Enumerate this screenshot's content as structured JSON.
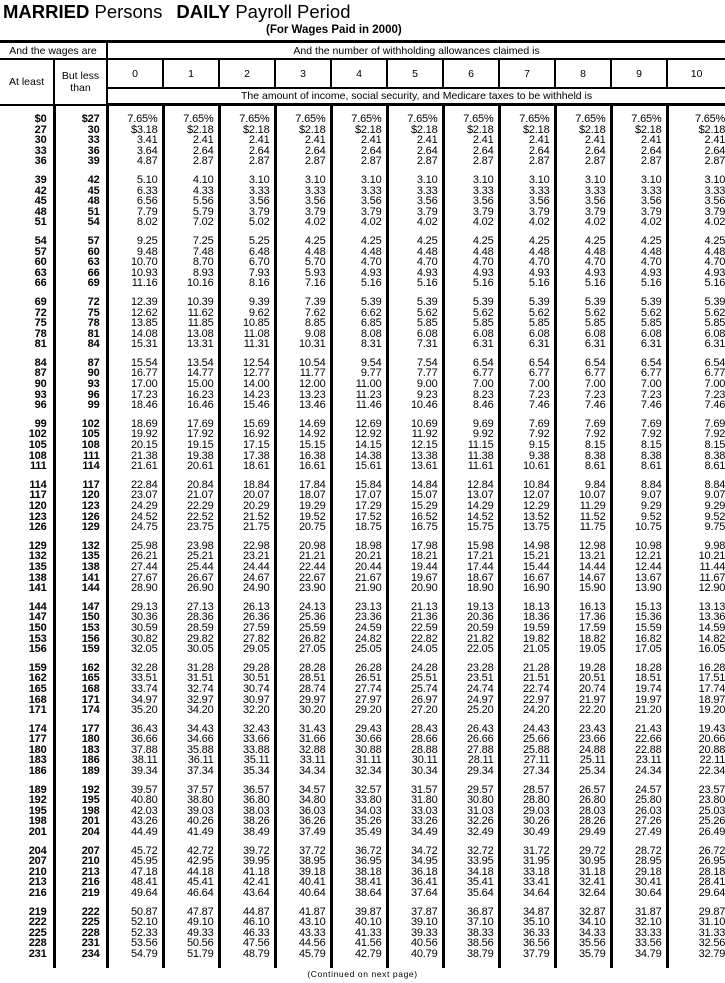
{
  "title": {
    "part1": "MARRIED",
    "part2": "Persons",
    "part3": "DAILY",
    "part4": "Payroll Period"
  },
  "subtitle": "(For Wages Paid in 2000)",
  "header": {
    "wages_label": "And the wages are",
    "allowances_label": "And the number of withholding allowances claimed is",
    "at_least": "At least",
    "but_less_than": "But less than",
    "allowance_columns": [
      "0",
      "1",
      "2",
      "3",
      "4",
      "5",
      "6",
      "7",
      "8",
      "9",
      "10"
    ],
    "amount_label": "The amount of income, social security, and Medicare taxes to be withheld is"
  },
  "groups": [
    [
      [
        "$0",
        "$27",
        "7.65%",
        "7.65%",
        "7.65%",
        "7.65%",
        "7.65%",
        "7.65%",
        "7.65%",
        "7.65%",
        "7.65%",
        "7.65%",
        "7.65%"
      ],
      [
        "27",
        "30",
        "$3.18",
        "$2.18",
        "$2.18",
        "$2.18",
        "$2.18",
        "$2.18",
        "$2.18",
        "$2.18",
        "$2.18",
        "$2.18",
        "$2.18"
      ],
      [
        "30",
        "33",
        "3.41",
        "2.41",
        "2.41",
        "2.41",
        "2.41",
        "2.41",
        "2.41",
        "2.41",
        "2.41",
        "2.41",
        "2.41"
      ],
      [
        "33",
        "36",
        "3.64",
        "2.64",
        "2.64",
        "2.64",
        "2.64",
        "2.64",
        "2.64",
        "2.64",
        "2.64",
        "2.64",
        "2.64"
      ],
      [
        "36",
        "39",
        "4.87",
        "2.87",
        "2.87",
        "2.87",
        "2.87",
        "2.87",
        "2.87",
        "2.87",
        "2.87",
        "2.87",
        "2.87"
      ]
    ],
    [
      [
        "39",
        "42",
        "5.10",
        "4.10",
        "3.10",
        "3.10",
        "3.10",
        "3.10",
        "3.10",
        "3.10",
        "3.10",
        "3.10",
        "3.10"
      ],
      [
        "42",
        "45",
        "6.33",
        "4.33",
        "3.33",
        "3.33",
        "3.33",
        "3.33",
        "3.33",
        "3.33",
        "3.33",
        "3.33",
        "3.33"
      ],
      [
        "45",
        "48",
        "6.56",
        "5.56",
        "3.56",
        "3.56",
        "3.56",
        "3.56",
        "3.56",
        "3.56",
        "3.56",
        "3.56",
        "3.56"
      ],
      [
        "48",
        "51",
        "7.79",
        "5.79",
        "3.79",
        "3.79",
        "3.79",
        "3.79",
        "3.79",
        "3.79",
        "3.79",
        "3.79",
        "3.79"
      ],
      [
        "51",
        "54",
        "8.02",
        "7.02",
        "5.02",
        "4.02",
        "4.02",
        "4.02",
        "4.02",
        "4.02",
        "4.02",
        "4.02",
        "4.02"
      ]
    ],
    [
      [
        "54",
        "57",
        "9.25",
        "7.25",
        "5.25",
        "4.25",
        "4.25",
        "4.25",
        "4.25",
        "4.25",
        "4.25",
        "4.25",
        "4.25"
      ],
      [
        "57",
        "60",
        "9.48",
        "7.48",
        "6.48",
        "4.48",
        "4.48",
        "4.48",
        "4.48",
        "4.48",
        "4.48",
        "4.48",
        "4.48"
      ],
      [
        "60",
        "63",
        "10.70",
        "8.70",
        "6.70",
        "5.70",
        "4.70",
        "4.70",
        "4.70",
        "4.70",
        "4.70",
        "4.70",
        "4.70"
      ],
      [
        "63",
        "66",
        "10.93",
        "8.93",
        "7.93",
        "5.93",
        "4.93",
        "4.93",
        "4.93",
        "4.93",
        "4.93",
        "4.93",
        "4.93"
      ],
      [
        "66",
        "69",
        "11.16",
        "10.16",
        "8.16",
        "7.16",
        "5.16",
        "5.16",
        "5.16",
        "5.16",
        "5.16",
        "5.16",
        "5.16"
      ]
    ],
    [
      [
        "69",
        "72",
        "12.39",
        "10.39",
        "9.39",
        "7.39",
        "5.39",
        "5.39",
        "5.39",
        "5.39",
        "5.39",
        "5.39",
        "5.39"
      ],
      [
        "72",
        "75",
        "12.62",
        "11.62",
        "9.62",
        "7.62",
        "6.62",
        "5.62",
        "5.62",
        "5.62",
        "5.62",
        "5.62",
        "5.62"
      ],
      [
        "75",
        "78",
        "13.85",
        "11.85",
        "10.85",
        "8.85",
        "6.85",
        "5.85",
        "5.85",
        "5.85",
        "5.85",
        "5.85",
        "5.85"
      ],
      [
        "78",
        "81",
        "14.08",
        "13.08",
        "11.08",
        "9.08",
        "8.08",
        "6.08",
        "6.08",
        "6.08",
        "6.08",
        "6.08",
        "6.08"
      ],
      [
        "81",
        "84",
        "15.31",
        "13.31",
        "11.31",
        "10.31",
        "8.31",
        "7.31",
        "6.31",
        "6.31",
        "6.31",
        "6.31",
        "6.31"
      ]
    ],
    [
      [
        "84",
        "87",
        "15.54",
        "13.54",
        "12.54",
        "10.54",
        "9.54",
        "7.54",
        "6.54",
        "6.54",
        "6.54",
        "6.54",
        "6.54"
      ],
      [
        "87",
        "90",
        "16.77",
        "14.77",
        "12.77",
        "11.77",
        "9.77",
        "7.77",
        "6.77",
        "6.77",
        "6.77",
        "6.77",
        "6.77"
      ],
      [
        "90",
        "93",
        "17.00",
        "15.00",
        "14.00",
        "12.00",
        "11.00",
        "9.00",
        "7.00",
        "7.00",
        "7.00",
        "7.00",
        "7.00"
      ],
      [
        "93",
        "96",
        "17.23",
        "16.23",
        "14.23",
        "13.23",
        "11.23",
        "9.23",
        "8.23",
        "7.23",
        "7.23",
        "7.23",
        "7.23"
      ],
      [
        "96",
        "99",
        "18.46",
        "16.46",
        "15.46",
        "13.46",
        "11.46",
        "10.46",
        "8.46",
        "7.46",
        "7.46",
        "7.46",
        "7.46"
      ]
    ],
    [
      [
        "99",
        "102",
        "18.69",
        "17.69",
        "15.69",
        "14.69",
        "12.69",
        "10.69",
        "9.69",
        "7.69",
        "7.69",
        "7.69",
        "7.69"
      ],
      [
        "102",
        "105",
        "19.92",
        "17.92",
        "16.92",
        "14.92",
        "12.92",
        "11.92",
        "9.92",
        "7.92",
        "7.92",
        "7.92",
        "7.92"
      ],
      [
        "105",
        "108",
        "20.15",
        "19.15",
        "17.15",
        "15.15",
        "14.15",
        "12.15",
        "11.15",
        "9.15",
        "8.15",
        "8.15",
        "8.15"
      ],
      [
        "108",
        "111",
        "21.38",
        "19.38",
        "17.38",
        "16.38",
        "14.38",
        "13.38",
        "11.38",
        "9.38",
        "8.38",
        "8.38",
        "8.38"
      ],
      [
        "111",
        "114",
        "21.61",
        "20.61",
        "18.61",
        "16.61",
        "15.61",
        "13.61",
        "11.61",
        "10.61",
        "8.61",
        "8.61",
        "8.61"
      ]
    ],
    [
      [
        "114",
        "117",
        "22.84",
        "20.84",
        "18.84",
        "17.84",
        "15.84",
        "14.84",
        "12.84",
        "10.84",
        "9.84",
        "8.84",
        "8.84"
      ],
      [
        "117",
        "120",
        "23.07",
        "21.07",
        "20.07",
        "18.07",
        "17.07",
        "15.07",
        "13.07",
        "12.07",
        "10.07",
        "9.07",
        "9.07"
      ],
      [
        "120",
        "123",
        "24.29",
        "22.29",
        "20.29",
        "19.29",
        "17.29",
        "15.29",
        "14.29",
        "12.29",
        "11.29",
        "9.29",
        "9.29"
      ],
      [
        "123",
        "126",
        "24.52",
        "22.52",
        "21.52",
        "19.52",
        "17.52",
        "16.52",
        "14.52",
        "13.52",
        "11.52",
        "9.52",
        "9.52"
      ],
      [
        "126",
        "129",
        "24.75",
        "23.75",
        "21.75",
        "20.75",
        "18.75",
        "16.75",
        "15.75",
        "13.75",
        "11.75",
        "10.75",
        "9.75"
      ]
    ],
    [
      [
        "129",
        "132",
        "25.98",
        "23.98",
        "22.98",
        "20.98",
        "18.98",
        "17.98",
        "15.98",
        "14.98",
        "12.98",
        "10.98",
        "9.98"
      ],
      [
        "132",
        "135",
        "26.21",
        "25.21",
        "23.21",
        "21.21",
        "20.21",
        "18.21",
        "17.21",
        "15.21",
        "13.21",
        "12.21",
        "10.21"
      ],
      [
        "135",
        "138",
        "27.44",
        "25.44",
        "24.44",
        "22.44",
        "20.44",
        "19.44",
        "17.44",
        "15.44",
        "14.44",
        "12.44",
        "11.44"
      ],
      [
        "138",
        "141",
        "27.67",
        "26.67",
        "24.67",
        "22.67",
        "21.67",
        "19.67",
        "18.67",
        "16.67",
        "14.67",
        "13.67",
        "11.67"
      ],
      [
        "141",
        "144",
        "28.90",
        "26.90",
        "24.90",
        "23.90",
        "21.90",
        "20.90",
        "18.90",
        "16.90",
        "15.90",
        "13.90",
        "12.90"
      ]
    ],
    [
      [
        "144",
        "147",
        "29.13",
        "27.13",
        "26.13",
        "24.13",
        "23.13",
        "21.13",
        "19.13",
        "18.13",
        "16.13",
        "15.13",
        "13.13"
      ],
      [
        "147",
        "150",
        "30.36",
        "28.36",
        "26.36",
        "25.36",
        "23.36",
        "21.36",
        "20.36",
        "18.36",
        "17.36",
        "15.36",
        "13.36"
      ],
      [
        "150",
        "153",
        "30.59",
        "28.59",
        "27.59",
        "25.59",
        "24.59",
        "22.59",
        "20.59",
        "19.59",
        "17.59",
        "15.59",
        "14.59"
      ],
      [
        "153",
        "156",
        "30.82",
        "29.82",
        "27.82",
        "26.82",
        "24.82",
        "22.82",
        "21.82",
        "19.82",
        "18.82",
        "16.82",
        "14.82"
      ],
      [
        "156",
        "159",
        "32.05",
        "30.05",
        "29.05",
        "27.05",
        "25.05",
        "24.05",
        "22.05",
        "21.05",
        "19.05",
        "17.05",
        "16.05"
      ]
    ],
    [
      [
        "159",
        "162",
        "32.28",
        "31.28",
        "29.28",
        "28.28",
        "26.28",
        "24.28",
        "23.28",
        "21.28",
        "19.28",
        "18.28",
        "16.28"
      ],
      [
        "162",
        "165",
        "33.51",
        "31.51",
        "30.51",
        "28.51",
        "26.51",
        "25.51",
        "23.51",
        "21.51",
        "20.51",
        "18.51",
        "17.51"
      ],
      [
        "165",
        "168",
        "33.74",
        "32.74",
        "30.74",
        "28.74",
        "27.74",
        "25.74",
        "24.74",
        "22.74",
        "20.74",
        "19.74",
        "17.74"
      ],
      [
        "168",
        "171",
        "34.97",
        "32.97",
        "30.97",
        "29.97",
        "27.97",
        "26.97",
        "24.97",
        "22.97",
        "21.97",
        "19.97",
        "18.97"
      ],
      [
        "171",
        "174",
        "35.20",
        "34.20",
        "32.20",
        "30.20",
        "29.20",
        "27.20",
        "25.20",
        "24.20",
        "22.20",
        "21.20",
        "19.20"
      ]
    ],
    [
      [
        "174",
        "177",
        "36.43",
        "34.43",
        "32.43",
        "31.43",
        "29.43",
        "28.43",
        "26.43",
        "24.43",
        "23.43",
        "21.43",
        "19.43"
      ],
      [
        "177",
        "180",
        "36.66",
        "34.66",
        "33.66",
        "31.66",
        "30.66",
        "28.66",
        "26.66",
        "25.66",
        "23.66",
        "22.66",
        "20.66"
      ],
      [
        "180",
        "183",
        "37.88",
        "35.88",
        "33.88",
        "32.88",
        "30.88",
        "28.88",
        "27.88",
        "25.88",
        "24.88",
        "22.88",
        "20.88"
      ],
      [
        "183",
        "186",
        "38.11",
        "36.11",
        "35.11",
        "33.11",
        "31.11",
        "30.11",
        "28.11",
        "27.11",
        "25.11",
        "23.11",
        "22.11"
      ],
      [
        "186",
        "189",
        "39.34",
        "37.34",
        "35.34",
        "34.34",
        "32.34",
        "30.34",
        "29.34",
        "27.34",
        "25.34",
        "24.34",
        "22.34"
      ]
    ],
    [
      [
        "189",
        "192",
        "39.57",
        "37.57",
        "36.57",
        "34.57",
        "32.57",
        "31.57",
        "29.57",
        "28.57",
        "26.57",
        "24.57",
        "23.57"
      ],
      [
        "192",
        "195",
        "40.80",
        "38.80",
        "36.80",
        "34.80",
        "33.80",
        "31.80",
        "30.80",
        "28.80",
        "26.80",
        "25.80",
        "23.80"
      ],
      [
        "195",
        "198",
        "42.03",
        "39.03",
        "38.03",
        "36.03",
        "34.03",
        "33.03",
        "31.03",
        "29.03",
        "28.03",
        "26.03",
        "25.03"
      ],
      [
        "198",
        "201",
        "43.26",
        "40.26",
        "38.26",
        "36.26",
        "35.26",
        "33.26",
        "32.26",
        "30.26",
        "28.26",
        "27.26",
        "25.26"
      ],
      [
        "201",
        "204",
        "44.49",
        "41.49",
        "38.49",
        "37.49",
        "35.49",
        "34.49",
        "32.49",
        "30.49",
        "29.49",
        "27.49",
        "26.49"
      ]
    ],
    [
      [
        "204",
        "207",
        "45.72",
        "42.72",
        "39.72",
        "37.72",
        "36.72",
        "34.72",
        "32.72",
        "31.72",
        "29.72",
        "28.72",
        "26.72"
      ],
      [
        "207",
        "210",
        "45.95",
        "42.95",
        "39.95",
        "38.95",
        "36.95",
        "34.95",
        "33.95",
        "31.95",
        "30.95",
        "28.95",
        "26.95"
      ],
      [
        "210",
        "213",
        "47.18",
        "44.18",
        "41.18",
        "39.18",
        "38.18",
        "36.18",
        "34.18",
        "33.18",
        "31.18",
        "29.18",
        "28.18"
      ],
      [
        "213",
        "216",
        "48.41",
        "45.41",
        "42.41",
        "40.41",
        "38.41",
        "36.41",
        "35.41",
        "33.41",
        "32.41",
        "30.41",
        "28.41"
      ],
      [
        "216",
        "219",
        "49.64",
        "46.64",
        "43.64",
        "40.64",
        "38.64",
        "37.64",
        "35.64",
        "34.64",
        "32.64",
        "30.64",
        "29.64"
      ]
    ],
    [
      [
        "219",
        "222",
        "50.87",
        "47.87",
        "44.87",
        "41.87",
        "39.87",
        "37.87",
        "36.87",
        "34.87",
        "32.87",
        "31.87",
        "29.87"
      ],
      [
        "222",
        "225",
        "52.10",
        "49.10",
        "46.10",
        "43.10",
        "40.10",
        "39.10",
        "37.10",
        "35.10",
        "34.10",
        "32.10",
        "31.10"
      ],
      [
        "225",
        "228",
        "52.33",
        "49.33",
        "46.33",
        "43.33",
        "41.33",
        "39.33",
        "38.33",
        "36.33",
        "34.33",
        "33.33",
        "31.33"
      ],
      [
        "228",
        "231",
        "53.56",
        "50.56",
        "47.56",
        "44.56",
        "41.56",
        "40.56",
        "38.56",
        "36.56",
        "35.56",
        "33.56",
        "32.56"
      ],
      [
        "231",
        "234",
        "54.79",
        "51.79",
        "48.79",
        "45.79",
        "42.79",
        "40.79",
        "38.79",
        "37.79",
        "35.79",
        "34.79",
        "32.79"
      ]
    ]
  ],
  "footer": "(Continued on next page)"
}
